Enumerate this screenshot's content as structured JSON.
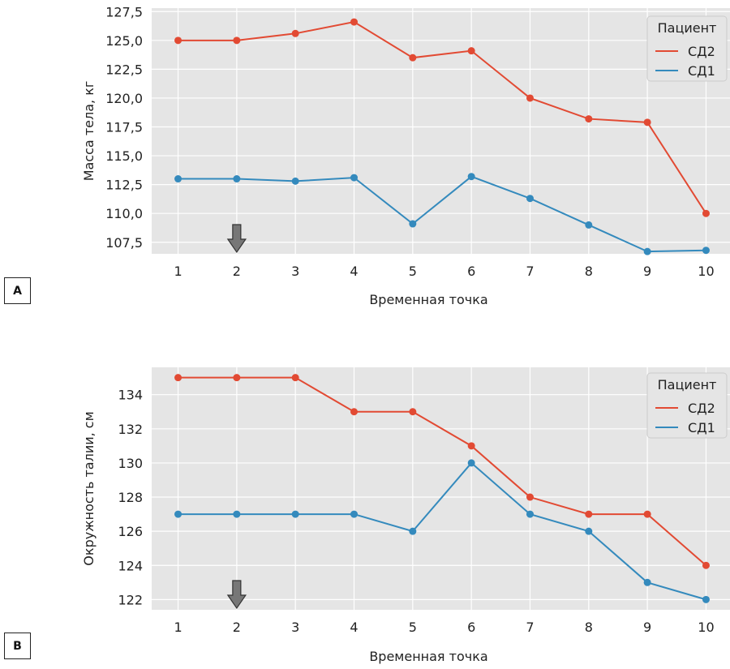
{
  "panels": [
    "A",
    "B"
  ],
  "chart_data": [
    {
      "type": "line",
      "panel": "A",
      "x": [
        1,
        2,
        3,
        4,
        5,
        6,
        7,
        8,
        9,
        10
      ],
      "xlabel": "Временная точка",
      "ylabel": "Масса тела, кг",
      "ylim": [
        106.5,
        127.8
      ],
      "xlim": [
        0.55,
        10.45
      ],
      "yticks": [
        107.5,
        110.0,
        112.5,
        115.0,
        117.5,
        120.0,
        122.5,
        125.0,
        127.5
      ],
      "ytick_labels": [
        "107,5",
        "110,0",
        "112,5",
        "115,0",
        "117,5",
        "120,0",
        "122,5",
        "125,0",
        "127,5"
      ],
      "xtick_labels": [
        "1",
        "2",
        "3",
        "4",
        "5",
        "6",
        "7",
        "8",
        "9",
        "10"
      ],
      "grid": true,
      "legend_title": "Пациент",
      "legend_position": "top-right",
      "marker_at_x": 2,
      "series": [
        {
          "name": "СД2",
          "color": "#e24a33",
          "values": [
            125.0,
            125.0,
            125.6,
            126.6,
            123.5,
            124.1,
            120.0,
            118.2,
            117.9,
            110.0
          ]
        },
        {
          "name": "СД1",
          "color": "#348abd",
          "values": [
            113.0,
            113.0,
            112.8,
            113.1,
            109.1,
            113.2,
            111.3,
            109.0,
            106.7,
            106.8
          ]
        }
      ]
    },
    {
      "type": "line",
      "panel": "B",
      "x": [
        1,
        2,
        3,
        4,
        5,
        6,
        7,
        8,
        9,
        10
      ],
      "xlabel": "Временная точка",
      "ylabel": "Окружность талии, см",
      "ylim": [
        121.4,
        135.6
      ],
      "xlim": [
        0.55,
        10.45
      ],
      "yticks": [
        122,
        124,
        126,
        128,
        130,
        132,
        134
      ],
      "ytick_labels": [
        "122",
        "124",
        "126",
        "128",
        "130",
        "132",
        "134"
      ],
      "xtick_labels": [
        "1",
        "2",
        "3",
        "4",
        "5",
        "6",
        "7",
        "8",
        "9",
        "10"
      ],
      "grid": true,
      "legend_title": "Пациент",
      "legend_position": "top-right",
      "marker_at_x": 2,
      "series": [
        {
          "name": "СД2",
          "color": "#e24a33",
          "values": [
            135,
            135,
            135,
            133,
            133,
            131,
            128,
            127,
            127,
            124
          ]
        },
        {
          "name": "СД1",
          "color": "#348abd",
          "values": [
            127,
            127,
            127,
            127,
            126,
            130,
            127,
            126,
            123,
            122
          ]
        }
      ]
    }
  ]
}
